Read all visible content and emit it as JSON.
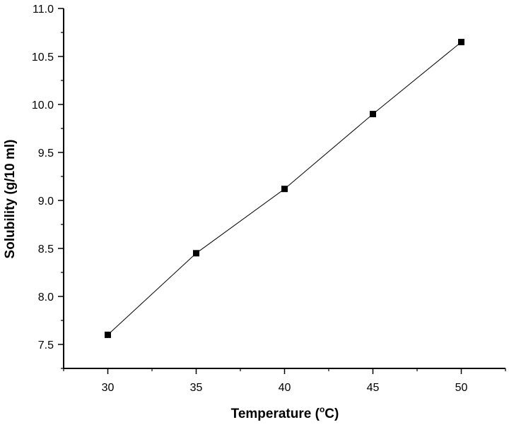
{
  "chart_data": {
    "type": "line",
    "xlabel_main": "Temperature (",
    "xlabel_sup": "o",
    "xlabel_end": "C)",
    "ylabel": "Solubility (g/10 ml)",
    "xlim": [
      27.5,
      52.5
    ],
    "ylim": [
      7.25,
      11.0
    ],
    "x_ticks": [
      30,
      35,
      40,
      45,
      50
    ],
    "y_ticks": [
      7.5,
      8.0,
      8.5,
      9.0,
      9.5,
      10.0,
      10.5,
      11.0
    ],
    "x_tick_labels": [
      "30",
      "35",
      "40",
      "45",
      "50"
    ],
    "y_tick_labels": [
      "7.5",
      "8.0",
      "8.5",
      "9.0",
      "9.5",
      "10.0",
      "10.5",
      "11.0"
    ],
    "grid": false,
    "series": [
      {
        "x": [
          30,
          35,
          40,
          45,
          50
        ],
        "y": [
          7.6,
          8.45,
          9.12,
          9.9,
          10.65
        ],
        "marker": "square",
        "color": "#000000"
      }
    ]
  }
}
